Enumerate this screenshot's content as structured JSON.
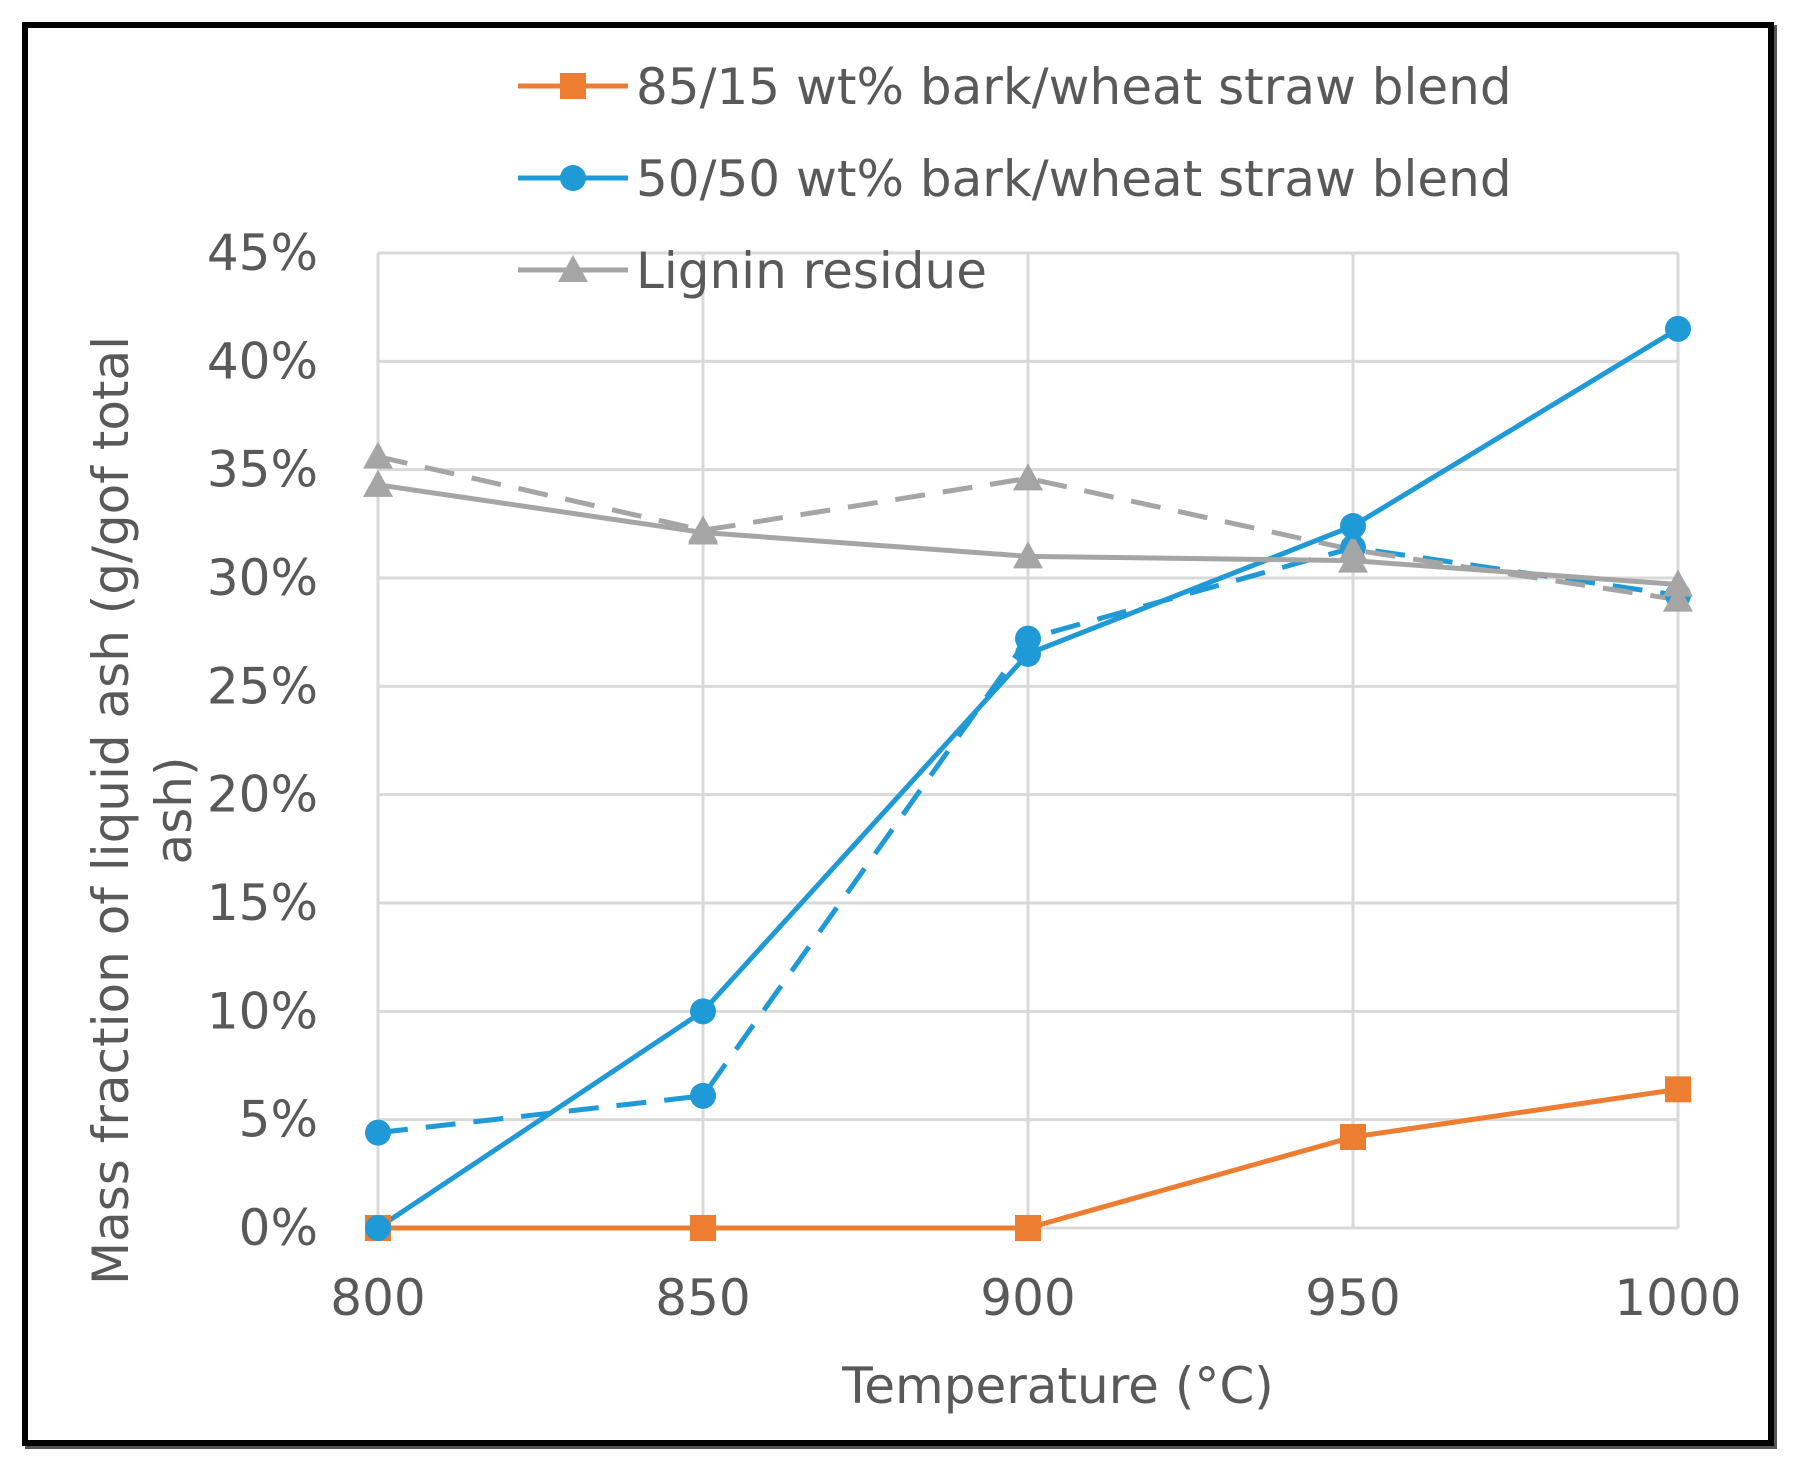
{
  "chart_data": {
    "type": "line",
    "title": "",
    "xlabel": "Temperature (°C)",
    "ylabel_line1": "Mass fraction of liquid ash (g/gof total",
    "ylabel_line2": "ash)",
    "x": [
      800,
      850,
      900,
      950,
      1000
    ],
    "x_tick_labels": [
      "800",
      "850",
      "900",
      "950",
      "1000"
    ],
    "ylim": [
      0,
      0.45
    ],
    "y_ticks": [
      0,
      0.05,
      0.1,
      0.15,
      0.2,
      0.25,
      0.3,
      0.35,
      0.4,
      0.45
    ],
    "y_tick_labels": [
      "0%",
      "5%",
      "10%",
      "15%",
      "20%",
      "25%",
      "30%",
      "35%",
      "40%",
      "45%"
    ],
    "grid": true,
    "legend_position": "top",
    "series": [
      {
        "name": "85/15 wt% bark/wheat straw blend",
        "color": "#ED7D31",
        "marker": "square",
        "dashed": false,
        "in_legend": true,
        "values": [
          0.0,
          0.0,
          0.0,
          0.042,
          0.064
        ]
      },
      {
        "name": "50/50 wt% bark/wheat straw blend",
        "color": "#1F9AD6",
        "marker": "circle",
        "dashed": false,
        "in_legend": true,
        "values": [
          0.0,
          0.1,
          0.265,
          0.324,
          0.415
        ]
      },
      {
        "name": "Lignin residue",
        "color": "#A5A5A5",
        "marker": "triangle",
        "dashed": false,
        "in_legend": true,
        "values": [
          0.343,
          0.321,
          0.31,
          0.308,
          0.297
        ]
      },
      {
        "name": "50/50 wt% bark/wheat straw blend (dashed)",
        "color": "#1F9AD6",
        "marker": "circle",
        "dashed": true,
        "in_legend": false,
        "values": [
          0.044,
          0.061,
          0.272,
          0.314,
          0.292
        ]
      },
      {
        "name": "Lignin residue (dashed)",
        "color": "#A5A5A5",
        "marker": "triangle",
        "dashed": true,
        "in_legend": false,
        "values": [
          0.356,
          0.322,
          0.346,
          0.313,
          0.29
        ]
      }
    ]
  }
}
